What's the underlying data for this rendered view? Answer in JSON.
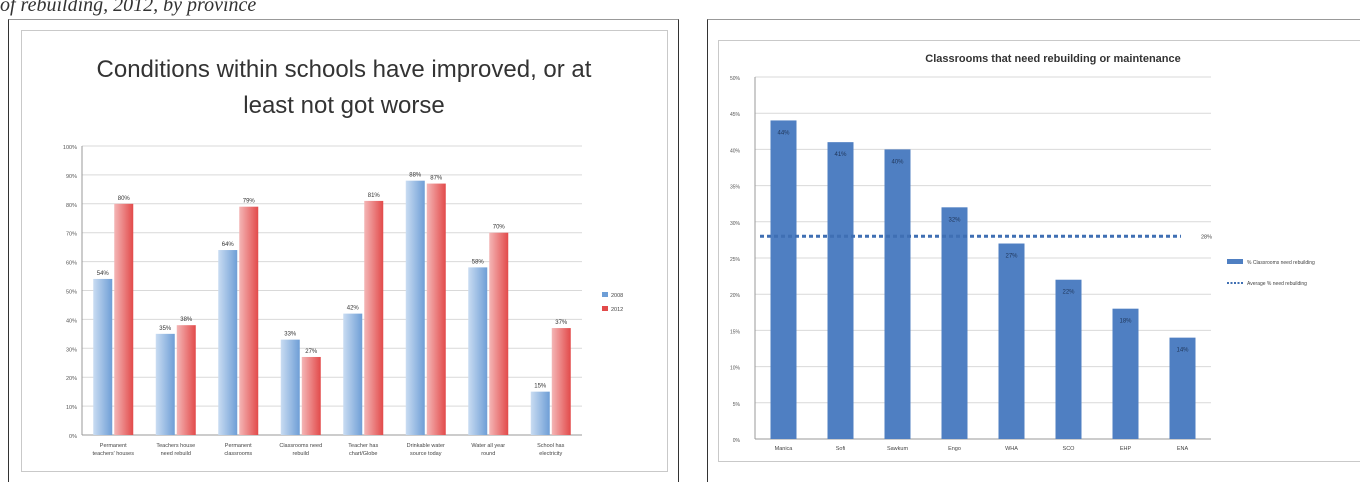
{
  "page": {
    "caption": "of rebuilding, 2012, by province"
  },
  "colors": {
    "series_2008": "#6e9ed6",
    "series_2012": "#e24a4a",
    "right_bar": "#4f7fc2",
    "average_line": "#3f6fb3",
    "grid": "#d9d9d9"
  },
  "chart_data": [
    {
      "type": "bar",
      "title_line1": "Conditions within schools have improved, or at",
      "title_line2": "least not got worse",
      "categories_line1": [
        "Permanent",
        "Teachers house",
        "Permanent",
        "Classrooms need",
        "Teacher has",
        "Drinkable water",
        "Water all year",
        "School has"
      ],
      "categories_line2": [
        "teachers' houses",
        "need rebuild",
        "classrooms",
        "rebuild",
        "chart/Globe",
        "source today",
        "round",
        "electricity"
      ],
      "series": [
        {
          "name": "2008",
          "values": [
            54,
            35,
            64,
            33,
            42,
            88,
            58,
            15
          ],
          "labels": [
            "54%",
            "35%",
            "64%",
            "33%",
            "42%",
            "88%",
            "58%",
            "15%"
          ]
        },
        {
          "name": "2012",
          "values": [
            80,
            38,
            79,
            27,
            81,
            87,
            70,
            37
          ],
          "labels": [
            "80%",
            "38%",
            "79%",
            "27%",
            "81%",
            "87%",
            "70%",
            "37%"
          ]
        }
      ],
      "y_ticks": [
        "0%",
        "10%",
        "20%",
        "30%",
        "40%",
        "50%",
        "60%",
        "70%",
        "80%",
        "90%",
        "100%"
      ],
      "ylim": [
        0,
        100
      ],
      "grid": true,
      "legend_position": "right"
    },
    {
      "type": "bar",
      "title": "Classrooms that need rebuilding or maintenance",
      "categories": [
        "Manica",
        "Sofi",
        "Sawkum",
        "Engo",
        "WHA",
        "SCO",
        "EHP",
        "ENA"
      ],
      "values": [
        44,
        41,
        40,
        32,
        27,
        22,
        18,
        14
      ],
      "labels": [
        "44%",
        "41%",
        "40%",
        "32%",
        "27%",
        "22%",
        "18%",
        "14%"
      ],
      "average": 28,
      "average_label": "28%",
      "legend": [
        "% Classrooms need rebuilding",
        "Average % need rebuilding"
      ],
      "y_ticks": [
        "0%",
        "5%",
        "10%",
        "15%",
        "20%",
        "25%",
        "30%",
        "35%",
        "40%",
        "45%",
        "50%"
      ],
      "ylim": [
        0,
        50
      ],
      "grid": true,
      "legend_position": "right"
    }
  ]
}
